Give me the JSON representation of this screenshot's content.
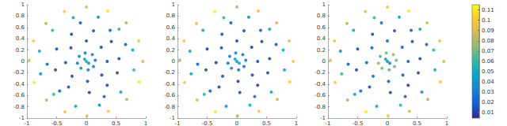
{
  "chart_data": [
    {
      "type": "scatter",
      "x": [
        0.95,
        0.88,
        0.67,
        0.36,
        0.0,
        -0.37,
        -0.68,
        -0.89,
        -0.96,
        -0.88,
        -0.67,
        -0.36,
        0.01,
        0.37,
        0.68,
        0.89,
        0.78,
        0.55,
        0.2,
        -0.22,
        -0.57,
        -0.79,
        -0.77,
        -0.55,
        -0.18,
        0.22,
        0.58,
        0.8,
        0.66,
        -0.1,
        -0.66,
        0.3,
        -0.45,
        0.4,
        0.55,
        0.42,
        0.12,
        -0.25,
        -0.5,
        -0.52,
        -0.3,
        0.05,
        0.35,
        0.52,
        0.35,
        0.25,
        0.0,
        -0.26,
        -0.35,
        -0.24,
        0.02,
        0.26,
        0.15,
        0.1,
        -0.02,
        -0.12,
        -0.15,
        -0.09,
        0.03,
        0.12,
        0.0,
        0.04,
        -0.03
      ],
      "y": [
        0.0,
        0.36,
        0.68,
        0.89,
        0.96,
        0.88,
        0.67,
        0.36,
        0.02,
        -0.37,
        -0.68,
        -0.89,
        -0.96,
        -0.88,
        -0.67,
        -0.36,
        0.2,
        0.57,
        0.78,
        0.77,
        0.55,
        0.18,
        -0.22,
        -0.58,
        -0.79,
        -0.77,
        -0.54,
        -0.15,
        0.3,
        0.68,
        -0.05,
        -0.62,
        -0.52,
        0.55,
        0.05,
        0.35,
        0.54,
        0.48,
        0.22,
        -0.15,
        -0.45,
        -0.55,
        -0.42,
        -0.2,
        0.0,
        0.25,
        0.36,
        0.24,
        -0.02,
        -0.26,
        -0.35,
        -0.24,
        0.02,
        0.12,
        0.15,
        0.09,
        -0.03,
        -0.12,
        -0.15,
        -0.09,
        0.0,
        -0.03,
        0.04
      ],
      "values": [
        0.09,
        0.1,
        0.08,
        0.11,
        0.09,
        0.1,
        0.08,
        0.1,
        0.09,
        0.11,
        0.08,
        0.1,
        0.09,
        0.1,
        0.08,
        0.11,
        0.05,
        0.06,
        0.04,
        0.05,
        0.06,
        0.05,
        0.04,
        0.06,
        0.05,
        0.04,
        0.05,
        0.06,
        0.02,
        0.02,
        0.025,
        0.02,
        0.02,
        0.025,
        0.015,
        0.012,
        0.015,
        0.012,
        0.015,
        0.012,
        0.015,
        0.012,
        0.015,
        0.012,
        0.015,
        0.012,
        0.015,
        0.012,
        0.015,
        0.012,
        0.015,
        0.012,
        0.03,
        0.035,
        0.03,
        0.035,
        0.03,
        0.035,
        0.03,
        0.035,
        0.05,
        0.045,
        0.05
      ],
      "xlim": [
        -1,
        1
      ],
      "xticks": [
        -1,
        -0.5,
        0,
        0.5,
        1
      ],
      "ylim": [
        -1,
        1
      ],
      "yticks": [
        -1,
        -0.8,
        -0.6,
        -0.4,
        -0.2,
        0,
        0.2,
        0.4,
        0.6,
        0.8,
        1
      ]
    },
    {
      "type": "scatter",
      "x": [
        0.95,
        0.88,
        0.67,
        0.36,
        0.0,
        -0.37,
        -0.68,
        -0.89,
        -0.96,
        -0.88,
        -0.67,
        -0.36,
        0.01,
        0.37,
        0.68,
        0.89,
        0.78,
        0.55,
        0.2,
        -0.22,
        -0.57,
        -0.79,
        -0.77,
        -0.55,
        -0.18,
        0.22,
        0.58,
        0.8,
        0.66,
        -0.1,
        -0.66,
        0.3,
        -0.45,
        0.4,
        0.55,
        0.42,
        0.12,
        -0.25,
        -0.5,
        -0.52,
        -0.3,
        0.05,
        0.35,
        0.52,
        0.35,
        0.25,
        0.0,
        -0.26,
        -0.35,
        -0.24,
        0.02,
        0.26,
        0.15,
        0.1,
        -0.02,
        -0.12,
        -0.15,
        -0.09,
        0.03,
        0.12,
        0.0,
        0.04,
        -0.03
      ],
      "y": [
        0.0,
        0.36,
        0.68,
        0.89,
        0.96,
        0.88,
        0.67,
        0.36,
        0.02,
        -0.37,
        -0.68,
        -0.89,
        -0.96,
        -0.88,
        -0.67,
        -0.36,
        0.2,
        0.57,
        0.78,
        0.77,
        0.55,
        0.18,
        -0.22,
        -0.58,
        -0.79,
        -0.77,
        -0.54,
        -0.15,
        0.3,
        0.68,
        -0.05,
        -0.62,
        -0.52,
        0.55,
        0.05,
        0.35,
        0.54,
        0.48,
        0.22,
        -0.15,
        -0.45,
        -0.55,
        -0.42,
        -0.2,
        0.0,
        0.25,
        0.36,
        0.24,
        -0.02,
        -0.26,
        -0.35,
        -0.24,
        0.02,
        0.12,
        0.15,
        0.09,
        -0.03,
        -0.12,
        -0.15,
        -0.09,
        0.0,
        -0.03,
        0.04
      ],
      "values": [
        0.1,
        0.09,
        0.09,
        0.1,
        0.08,
        0.11,
        0.09,
        0.1,
        0.08,
        0.1,
        0.09,
        0.11,
        0.08,
        0.1,
        0.09,
        0.1,
        0.05,
        0.05,
        0.04,
        0.06,
        0.05,
        0.05,
        0.05,
        0.06,
        0.04,
        0.05,
        0.05,
        0.05,
        0.02,
        0.02,
        0.02,
        0.025,
        0.02,
        0.02,
        0.015,
        0.012,
        0.015,
        0.015,
        0.012,
        0.015,
        0.012,
        0.015,
        0.012,
        0.015,
        0.015,
        0.012,
        0.015,
        0.015,
        0.012,
        0.015,
        0.012,
        0.015,
        0.03,
        0.03,
        0.035,
        0.03,
        0.03,
        0.035,
        0.03,
        0.03,
        0.045,
        0.05,
        0.045
      ],
      "xlim": [
        -1,
        1
      ],
      "xticks": [
        -1,
        -0.5,
        0,
        0.5,
        1
      ],
      "ylim": [
        -1,
        1
      ],
      "yticks": [
        -1,
        -0.8,
        -0.6,
        -0.4,
        -0.2,
        0,
        0.2,
        0.4,
        0.6,
        0.8,
        1
      ]
    },
    {
      "type": "scatter",
      "x": [
        0.95,
        0.88,
        0.67,
        0.36,
        0.0,
        -0.37,
        -0.68,
        -0.89,
        -0.96,
        -0.88,
        -0.67,
        -0.36,
        0.01,
        0.37,
        0.68,
        0.89,
        0.78,
        0.55,
        0.2,
        -0.22,
        -0.57,
        -0.79,
        -0.77,
        -0.55,
        -0.18,
        0.22,
        0.58,
        0.8,
        0.66,
        -0.1,
        -0.66,
        0.3,
        -0.45,
        0.4,
        0.55,
        0.42,
        0.12,
        -0.25,
        -0.5,
        -0.52,
        -0.3,
        0.05,
        0.35,
        0.52,
        0.35,
        0.25,
        0.0,
        -0.26,
        -0.35,
        -0.24,
        0.02,
        0.26,
        0.15,
        0.1,
        -0.02,
        -0.12,
        -0.15,
        -0.09,
        0.03,
        0.12,
        0.0,
        0.04,
        -0.03
      ],
      "y": [
        0.0,
        0.36,
        0.68,
        0.89,
        0.96,
        0.88,
        0.67,
        0.36,
        0.02,
        -0.37,
        -0.68,
        -0.89,
        -0.96,
        -0.88,
        -0.67,
        -0.36,
        0.2,
        0.57,
        0.78,
        0.77,
        0.55,
        0.18,
        -0.22,
        -0.58,
        -0.79,
        -0.77,
        -0.54,
        -0.15,
        0.3,
        0.68,
        -0.05,
        -0.62,
        -0.52,
        0.55,
        0.05,
        0.35,
        0.54,
        0.48,
        0.22,
        -0.15,
        -0.45,
        -0.55,
        -0.42,
        -0.2,
        0.0,
        0.25,
        0.36,
        0.24,
        -0.02,
        -0.26,
        -0.35,
        -0.24,
        0.02,
        0.12,
        0.15,
        0.09,
        -0.03,
        -0.12,
        -0.15,
        -0.09,
        0.0,
        -0.03,
        0.04
      ],
      "values": [
        0.09,
        0.1,
        0.09,
        0.11,
        0.1,
        0.09,
        0.08,
        0.1,
        0.09,
        0.1,
        0.08,
        0.11,
        0.1,
        0.09,
        0.08,
        0.1,
        0.06,
        0.05,
        0.05,
        0.06,
        0.05,
        0.04,
        0.06,
        0.05,
        0.05,
        0.06,
        0.04,
        0.05,
        0.02,
        0.025,
        0.02,
        0.02,
        0.025,
        0.02,
        0.015,
        0.015,
        0.012,
        0.015,
        0.015,
        0.012,
        0.015,
        0.015,
        0.012,
        0.015,
        0.02,
        0.02,
        0.025,
        0.02,
        0.02,
        0.025,
        0.02,
        0.02,
        0.07,
        0.075,
        0.07,
        0.065,
        0.075,
        0.07,
        0.065,
        0.07,
        0.04,
        0.035,
        0.04
      ],
      "xlim": [
        -1,
        1
      ],
      "xticks": [
        -1,
        -0.5,
        0,
        0.5,
        1
      ],
      "ylim": [
        -1,
        1
      ],
      "yticks": [
        -1,
        -0.8,
        -0.6,
        -0.4,
        -0.2,
        0,
        0.2,
        0.4,
        0.6,
        0.8,
        1
      ],
      "colorbar": {
        "lim": [
          0.005,
          0.115
        ],
        "ticks": [
          0.01,
          0.02,
          0.03,
          0.04,
          0.05,
          0.06,
          0.07,
          0.08,
          0.09,
          0.1,
          0.11
        ]
      }
    }
  ]
}
